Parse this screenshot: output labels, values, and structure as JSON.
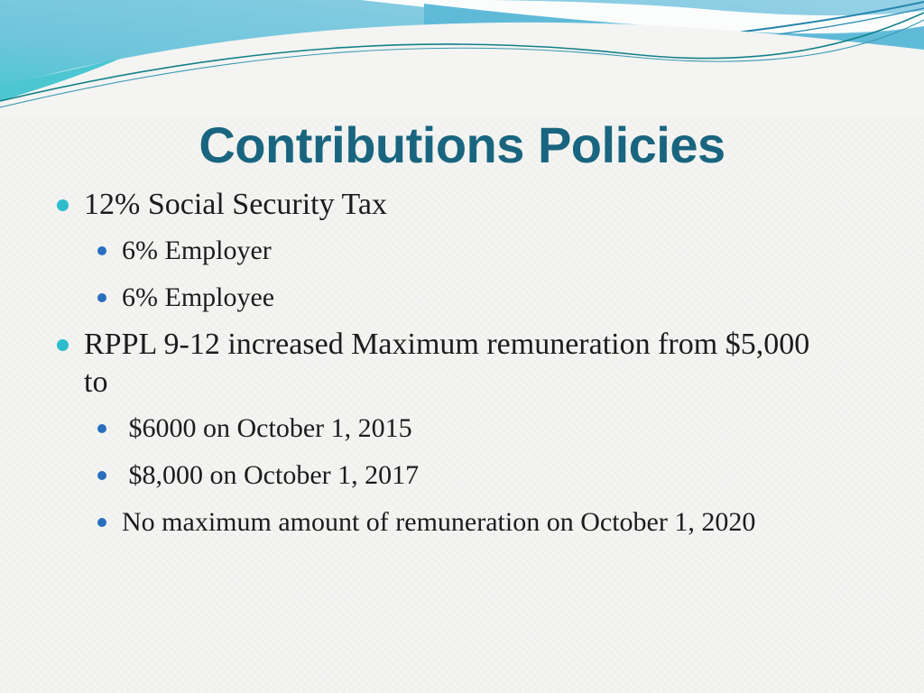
{
  "slide": {
    "title": "Contributions Policies",
    "bullets": [
      {
        "level": 1,
        "text": "12% Social Security Tax"
      },
      {
        "level": 2,
        "text": "6% Employer"
      },
      {
        "level": 2,
        "text": "6% Employee"
      },
      {
        "level": 1,
        "text": "RPPL 9-12 increased Maximum remuneration from $5,000 to"
      },
      {
        "level": 2,
        "text": " $6000 on October 1, 2015"
      },
      {
        "level": 2,
        "text": " $8,000 on October 1, 2017"
      },
      {
        "level": 2,
        "text": "No maximum amount of remuneration on October 1, 2020"
      }
    ],
    "colors": {
      "title_text": "#19657f",
      "body_text": "#1c1c1c",
      "bullet_level1": "#2cbccb",
      "bullet_level2": "#2a6fbf",
      "wave_turquoise": "#4cc7d2",
      "wave_light_blue": "#93cfe5",
      "wave_band_blue": "#5fbad8",
      "wave_accent_line": "#128089",
      "background": "#f4f4f2"
    }
  }
}
